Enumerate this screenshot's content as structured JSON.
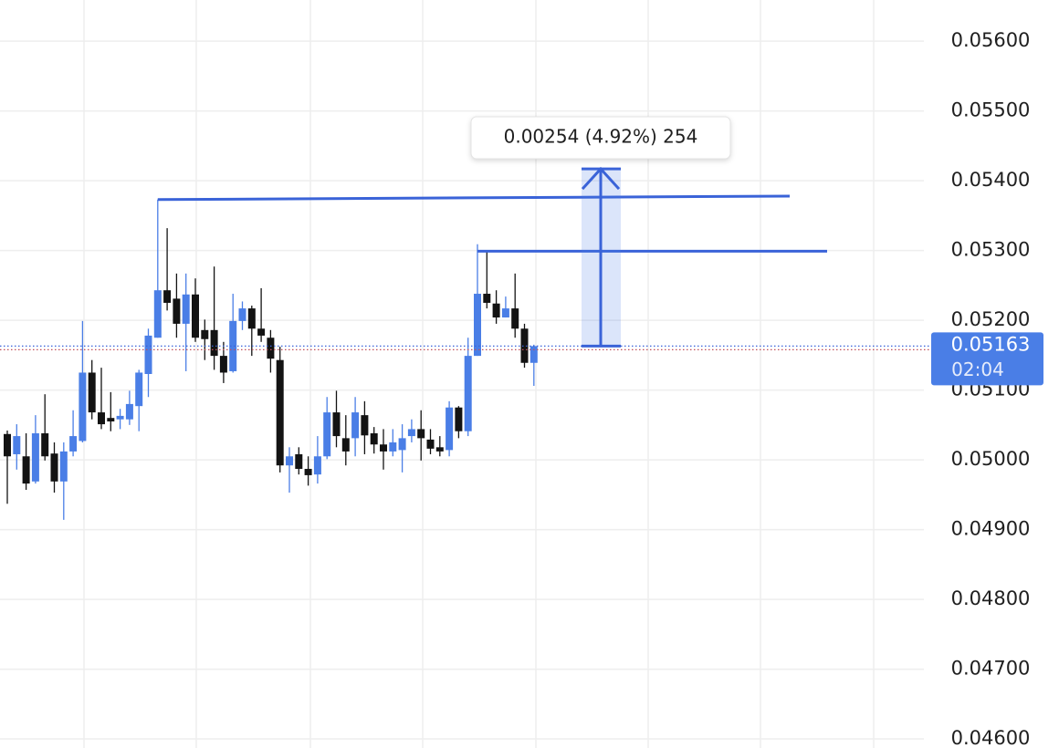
{
  "chart_data": {
    "type": "candlestick",
    "ylim": [
      0.04587,
      0.05659
    ],
    "yticks": [
      {
        "value": 0.056,
        "label": "0.05600"
      },
      {
        "value": 0.055,
        "label": "0.05500"
      },
      {
        "value": 0.054,
        "label": "0.05400"
      },
      {
        "value": 0.053,
        "label": "0.05300"
      },
      {
        "value": 0.052,
        "label": "0.05200"
      },
      {
        "value": 0.051,
        "label": "0.05100"
      },
      {
        "value": 0.05,
        "label": "0.05000"
      },
      {
        "value": 0.049,
        "label": "0.04900"
      },
      {
        "value": 0.048,
        "label": "0.04800"
      },
      {
        "value": 0.047,
        "label": "0.04700"
      },
      {
        "value": 0.046,
        "label": "0.04600"
      }
    ],
    "grid": true,
    "up_color": "#4a7ee6",
    "down_color": "#131313",
    "open": [
      0.05037,
      0.05008,
      0.05005,
      0.04969,
      0.05038,
      0.05009,
      0.04969,
      0.05012,
      0.05027,
      0.05125,
      0.05068,
      0.0506,
      0.05058,
      0.05058,
      0.05077,
      0.05123,
      0.05175,
      0.05243,
      0.05231,
      0.05195,
      0.05237,
      0.05186,
      0.05186,
      0.05149,
      0.05127,
      0.05199,
      0.05217,
      0.05188,
      0.05175,
      0.05143,
      0.04992,
      0.05008,
      0.04987,
      0.04979,
      0.05005,
      0.05068,
      0.05031,
      0.05031,
      0.05064,
      0.05038,
      0.05022,
      0.05012,
      0.05014,
      0.05034,
      0.05044,
      0.05029,
      0.05018,
      0.05014,
      0.05075,
      0.05041,
      0.05149,
      0.05238,
      0.05224,
      0.05204,
      0.05217,
      0.05188,
      0.05139
    ],
    "high": [
      0.05042,
      0.05051,
      0.05038,
      0.05064,
      0.05094,
      0.05025,
      0.05025,
      0.05071,
      0.05199,
      0.05143,
      0.05132,
      0.05097,
      0.05073,
      0.05099,
      0.05129,
      0.05188,
      0.05373,
      0.05332,
      0.05267,
      0.05267,
      0.0526,
      0.05201,
      0.05277,
      0.05169,
      0.05238,
      0.05227,
      0.05221,
      0.05246,
      0.05186,
      0.05162,
      0.05018,
      0.05018,
      0.05005,
      0.05034,
      0.0509,
      0.05099,
      0.05064,
      0.0509,
      0.05084,
      0.05047,
      0.05044,
      0.05044,
      0.05051,
      0.05058,
      0.05071,
      0.05044,
      0.05034,
      0.05084,
      0.05077,
      0.05175,
      0.05309,
      0.05299,
      0.05243,
      0.05234,
      0.05267,
      0.05195,
      0.05165
    ],
    "low": [
      0.04937,
      0.04986,
      0.04957,
      0.04966,
      0.04999,
      0.04953,
      0.04914,
      0.05005,
      0.05025,
      0.05058,
      0.05044,
      0.05041,
      0.05044,
      0.0505,
      0.05041,
      0.0509,
      0.05175,
      0.05214,
      0.05175,
      0.05127,
      0.05169,
      0.05143,
      0.05129,
      0.0511,
      0.05125,
      0.05186,
      0.05149,
      0.05169,
      0.05125,
      0.04982,
      0.04953,
      0.04979,
      0.04963,
      0.04966,
      0.05001,
      0.05018,
      0.04992,
      0.05005,
      0.05008,
      0.05009,
      0.04986,
      0.05005,
      0.04982,
      0.05025,
      0.04999,
      0.05008,
      0.05005,
      0.05005,
      0.05031,
      0.05034,
      0.05149,
      0.05217,
      0.05195,
      0.05204,
      0.05175,
      0.05132,
      0.05106
    ],
    "close": [
      0.05005,
      0.05034,
      0.04966,
      0.05038,
      0.05005,
      0.04969,
      0.05012,
      0.05034,
      0.05125,
      0.05068,
      0.05051,
      0.05055,
      0.05063,
      0.0508,
      0.05125,
      0.05178,
      0.05243,
      0.05225,
      0.05195,
      0.05237,
      0.05175,
      0.05173,
      0.05149,
      0.05125,
      0.05199,
      0.05217,
      0.05188,
      0.05178,
      0.05145,
      0.04992,
      0.05005,
      0.04987,
      0.04978,
      0.05005,
      0.05068,
      0.05034,
      0.05012,
      0.05068,
      0.05035,
      0.05022,
      0.05012,
      0.05025,
      0.05031,
      0.05044,
      0.05031,
      0.05016,
      0.05012,
      0.05075,
      0.05041,
      0.05149,
      0.05238,
      0.05225,
      0.05204,
      0.05217,
      0.05188,
      0.05139,
      0.05163
    ],
    "trend_line": {
      "from": 0.05373,
      "to": 0.05378,
      "color": "#3a63d8"
    },
    "level_line": {
      "value": 0.05299,
      "color": "#3a63d8"
    },
    "measure": {
      "from": 0.05163,
      "to": 0.05417,
      "label": "0.00254 (4.92%) 254"
    },
    "last_price": {
      "value": 0.05163,
      "label": "0.05163"
    },
    "countdown": "02:04"
  }
}
